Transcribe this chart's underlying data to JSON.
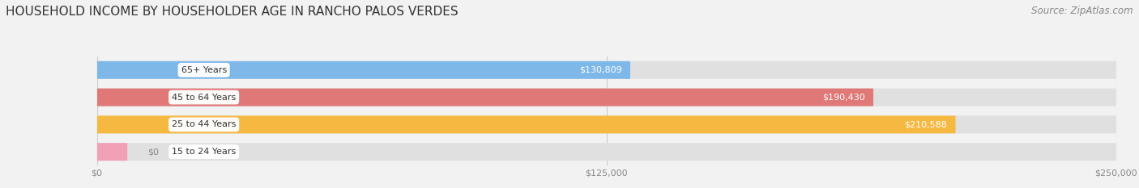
{
  "title": "HOUSEHOLD INCOME BY HOUSEHOLDER AGE IN RANCHO PALOS VERDES",
  "source": "Source: ZipAtlas.com",
  "categories": [
    "15 to 24 Years",
    "25 to 44 Years",
    "45 to 64 Years",
    "65+ Years"
  ],
  "values": [
    0,
    210588,
    190430,
    130809
  ],
  "bar_colors": [
    "#f2a0b5",
    "#f5b942",
    "#e07878",
    "#7db8e8"
  ],
  "bar_labels": [
    "$0",
    "$210,588",
    "$190,430",
    "$130,809"
  ],
  "xlim": [
    0,
    250000
  ],
  "xtick_labels": [
    "$0",
    "$125,000",
    "$250,000"
  ],
  "background_color": "#f2f2f2",
  "bar_bg_color": "#e0e0e0",
  "title_fontsize": 11,
  "source_fontsize": 8.5,
  "label_fontsize": 8,
  "tick_fontsize": 8,
  "category_fontsize": 8
}
